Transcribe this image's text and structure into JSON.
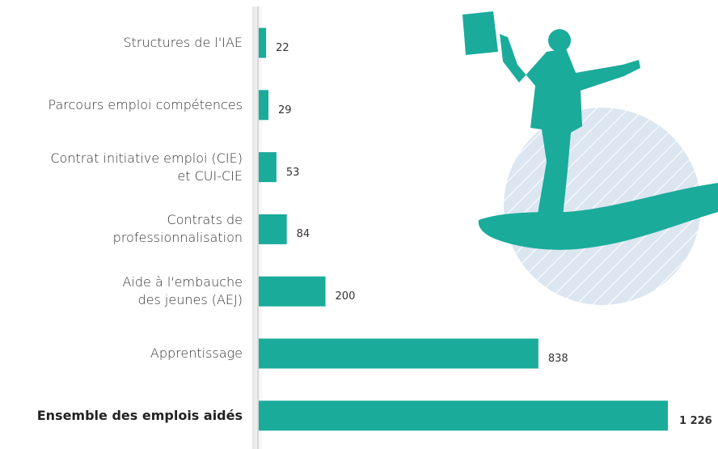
{
  "chart_data": {
    "type": "bar",
    "orientation": "horizontal",
    "categories": [
      "Structures de l'IAE",
      "Parcours emploi compétences",
      "Contrat initiative emploi (CIE)\net CUI-CIE",
      "Contrats de\nprofessionnalisation",
      "Aide à l'embauche\ndes jeunes (AEJ)",
      "Apprentissage",
      "Ensemble des emplois aidés"
    ],
    "values": [
      22,
      29,
      53,
      84,
      200,
      838,
      1226
    ],
    "value_labels": [
      "22",
      "29",
      "53",
      "84",
      "200",
      "838",
      "1 226"
    ],
    "color": "#1aab9b"
  }
}
